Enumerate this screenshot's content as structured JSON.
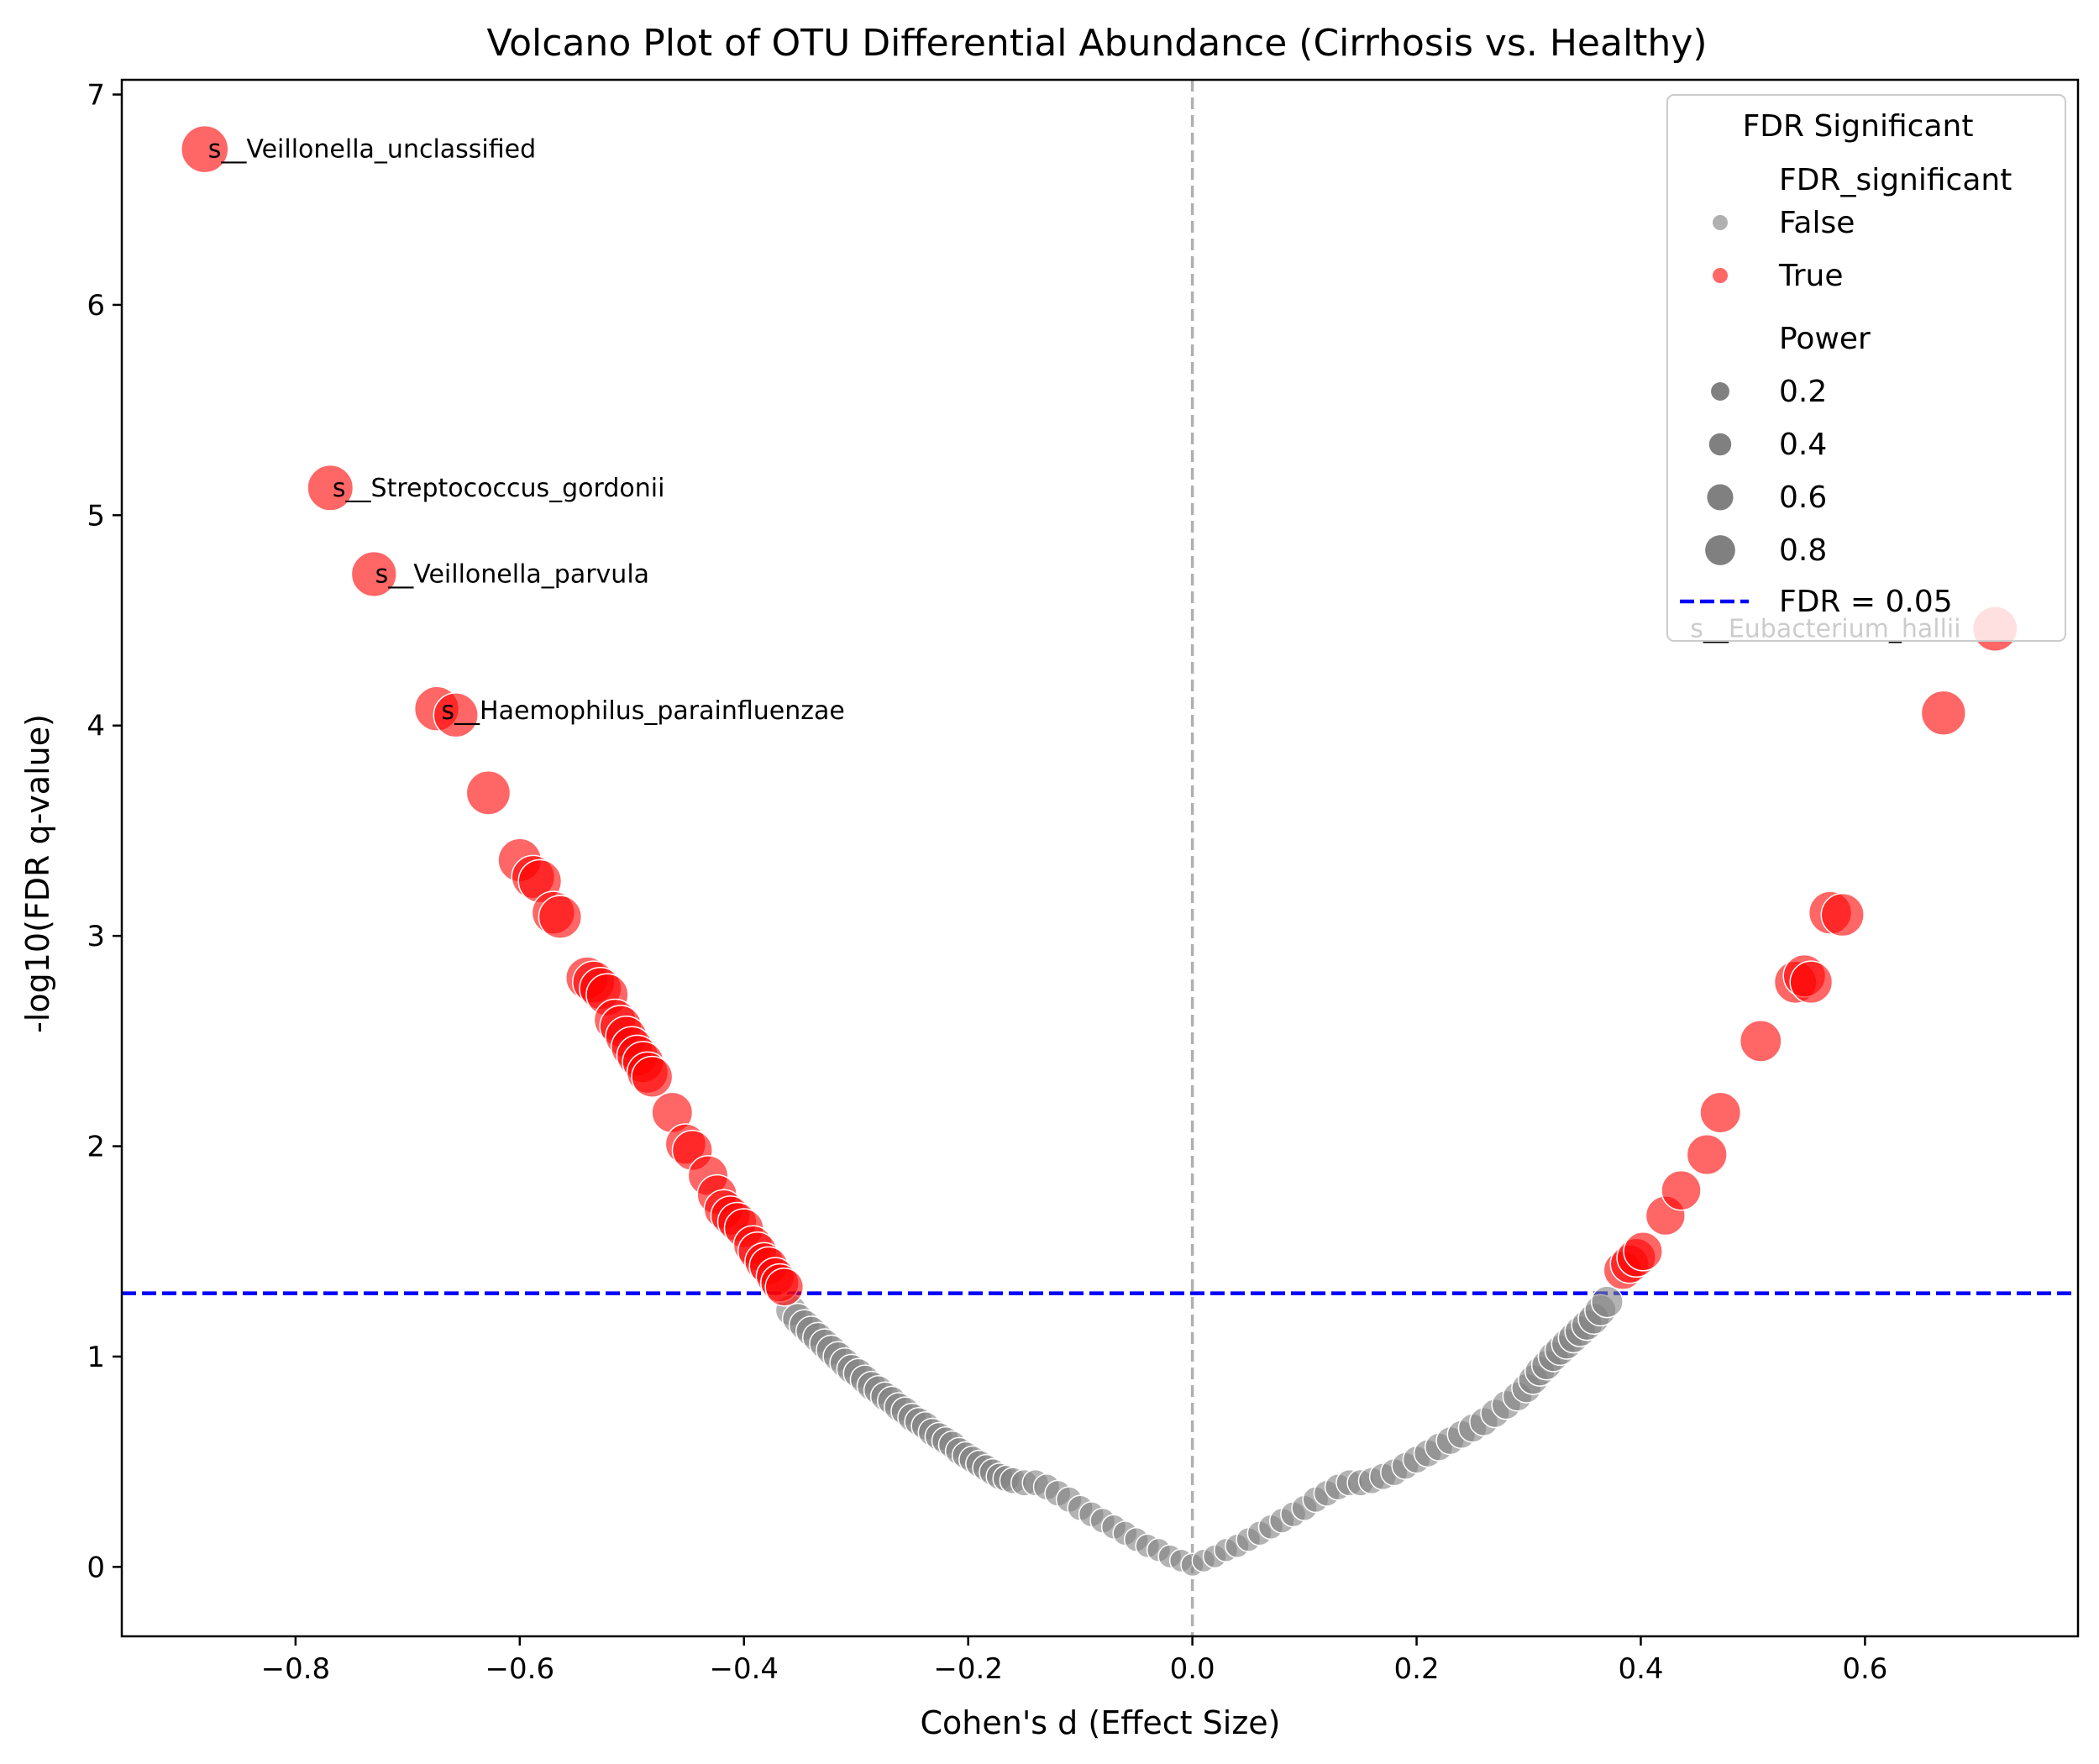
{
  "chart_data": {
    "type": "scatter",
    "title": "Volcano Plot of OTU Differential Abundance (Cirrhosis vs. Healthy)",
    "xlabel": "Cohen's d (Effect Size)",
    "ylabel": "-log10(FDR q-value)",
    "xlim": [
      -0.955,
      0.79
    ],
    "ylim": [
      -0.33,
      7.07
    ],
    "xticks": [
      -0.8,
      -0.6,
      -0.4,
      -0.2,
      0.0,
      0.2,
      0.4,
      0.6
    ],
    "xtick_labels": [
      "−0.8",
      "−0.6",
      "−0.4",
      "−0.2",
      "0.0",
      "0.2",
      "0.4",
      "0.6"
    ],
    "yticks": [
      0,
      1,
      2,
      3,
      4,
      5,
      6,
      7
    ],
    "ytick_labels": [
      "0",
      "1",
      "2",
      "3",
      "4",
      "5",
      "6",
      "7"
    ],
    "threshold": {
      "y": 1.301,
      "label": "FDR = 0.05",
      "color": "#0000ff"
    },
    "zero_line": {
      "x": 0,
      "color": "#b0b0b0"
    },
    "colors": {
      "significant": "#ff0000",
      "not_significant": "#808080"
    },
    "legend": {
      "title": "FDR Significant",
      "hue_title": "FDR_significant",
      "hue_entries": [
        {
          "label": "False",
          "color": "#b0b0b0"
        },
        {
          "label": "True",
          "color": "#ff6666"
        }
      ],
      "size_title": "Power",
      "size_entries": [
        "0.2",
        "0.4",
        "0.6",
        "0.8"
      ],
      "size_values": [
        0.2,
        0.4,
        0.6,
        0.8
      ],
      "line_entry": "FDR = 0.05",
      "placement": "upper right"
    },
    "annotations": [
      {
        "text": "s__Veillonella_unclassified",
        "x": -0.878,
        "y": 6.74
      },
      {
        "text": "s__Streptococcus_gordonii",
        "x": -0.767,
        "y": 5.13
      },
      {
        "text": "s__Veillonella_parvula",
        "x": -0.729,
        "y": 4.72
      },
      {
        "text": "s__Haemophilus_parainfluenzae",
        "x": -0.67,
        "y": 4.07
      },
      {
        "text": "s__Eubacterium_hallii",
        "x": 0.444,
        "y": 4.46
      }
    ],
    "series": [
      {
        "name": "True",
        "points": [
          [
            -0.881,
            6.74,
            1.0
          ],
          [
            -0.769,
            5.13,
            0.95
          ],
          [
            -0.73,
            4.72,
            0.93
          ],
          [
            -0.674,
            4.08,
            0.9
          ],
          [
            -0.657,
            4.05,
            0.9
          ],
          [
            -0.628,
            3.68,
            0.88
          ],
          [
            -0.6,
            3.36,
            0.86
          ],
          [
            -0.588,
            3.28,
            0.85
          ],
          [
            -0.582,
            3.26,
            0.85
          ],
          [
            -0.57,
            3.11,
            0.84
          ],
          [
            -0.564,
            3.09,
            0.84
          ],
          [
            -0.54,
            2.8,
            0.82
          ],
          [
            -0.534,
            2.78,
            0.82
          ],
          [
            -0.528,
            2.75,
            0.81
          ],
          [
            -0.522,
            2.72,
            0.81
          ],
          [
            -0.515,
            2.6,
            0.8
          ],
          [
            -0.51,
            2.57,
            0.8
          ],
          [
            -0.505,
            2.52,
            0.79
          ],
          [
            -0.5,
            2.47,
            0.79
          ],
          [
            -0.495,
            2.43,
            0.78
          ],
          [
            -0.49,
            2.4,
            0.78
          ],
          [
            -0.486,
            2.35,
            0.78
          ],
          [
            -0.482,
            2.33,
            0.77
          ],
          [
            -0.464,
            2.16,
            0.76
          ],
          [
            -0.452,
            2.01,
            0.75
          ],
          [
            -0.446,
            1.98,
            0.74
          ],
          [
            -0.432,
            1.86,
            0.73
          ],
          [
            -0.424,
            1.77,
            0.72
          ],
          [
            -0.418,
            1.7,
            0.71
          ],
          [
            -0.412,
            1.67,
            0.71
          ],
          [
            -0.406,
            1.64,
            0.7
          ],
          [
            -0.4,
            1.61,
            0.7
          ],
          [
            -0.392,
            1.53,
            0.69
          ],
          [
            -0.388,
            1.5,
            0.69
          ],
          [
            -0.382,
            1.45,
            0.68
          ],
          [
            -0.378,
            1.43,
            0.68
          ],
          [
            -0.372,
            1.38,
            0.67
          ],
          [
            -0.368,
            1.35,
            0.67
          ],
          [
            -0.364,
            1.33,
            0.66
          ],
          [
            0.384,
            1.41,
            0.68
          ],
          [
            0.39,
            1.44,
            0.68
          ],
          [
            0.396,
            1.47,
            0.69
          ],
          [
            0.402,
            1.5,
            0.69
          ],
          [
            0.422,
            1.67,
            0.71
          ],
          [
            0.436,
            1.79,
            0.72
          ],
          [
            0.459,
            1.96,
            0.74
          ],
          [
            0.471,
            2.16,
            0.76
          ],
          [
            0.507,
            2.5,
            0.79
          ],
          [
            0.538,
            2.78,
            0.82
          ],
          [
            0.546,
            2.81,
            0.82
          ],
          [
            0.552,
            2.78,
            0.82
          ],
          [
            0.569,
            3.11,
            0.84
          ],
          [
            0.58,
            3.1,
            0.84
          ],
          [
            0.67,
            4.06,
            0.9
          ],
          [
            0.716,
            4.46,
            0.92
          ]
        ]
      },
      {
        "name": "False",
        "points": [
          [
            -0.358,
            1.22,
            0.4
          ],
          [
            -0.352,
            1.18,
            0.39
          ],
          [
            -0.346,
            1.15,
            0.39
          ],
          [
            -0.34,
            1.12,
            0.38
          ],
          [
            -0.334,
            1.09,
            0.38
          ],
          [
            -0.328,
            1.06,
            0.37
          ],
          [
            -0.322,
            1.03,
            0.37
          ],
          [
            -0.316,
            1.0,
            0.36
          ],
          [
            -0.31,
            0.97,
            0.36
          ],
          [
            -0.304,
            0.94,
            0.35
          ],
          [
            -0.298,
            0.92,
            0.35
          ],
          [
            -0.292,
            0.89,
            0.34
          ],
          [
            -0.286,
            0.86,
            0.34
          ],
          [
            -0.28,
            0.84,
            0.33
          ],
          [
            -0.274,
            0.81,
            0.33
          ],
          [
            -0.268,
            0.79,
            0.32
          ],
          [
            -0.262,
            0.76,
            0.32
          ],
          [
            -0.256,
            0.74,
            0.31
          ],
          [
            -0.25,
            0.71,
            0.31
          ],
          [
            -0.244,
            0.69,
            0.3
          ],
          [
            -0.238,
            0.67,
            0.3
          ],
          [
            -0.232,
            0.64,
            0.29
          ],
          [
            -0.226,
            0.62,
            0.29
          ],
          [
            -0.22,
            0.6,
            0.28
          ],
          [
            -0.214,
            0.58,
            0.28
          ],
          [
            -0.208,
            0.55,
            0.27
          ],
          [
            -0.202,
            0.53,
            0.27
          ],
          [
            -0.196,
            0.51,
            0.26
          ],
          [
            -0.19,
            0.49,
            0.26
          ],
          [
            -0.184,
            0.47,
            0.25
          ],
          [
            -0.178,
            0.45,
            0.25
          ],
          [
            -0.172,
            0.43,
            0.24
          ],
          [
            -0.166,
            0.42,
            0.24
          ],
          [
            -0.16,
            0.41,
            0.23
          ],
          [
            -0.15,
            0.4,
            0.23
          ],
          [
            -0.14,
            0.4,
            0.22
          ],
          [
            -0.13,
            0.38,
            0.22
          ],
          [
            -0.12,
            0.35,
            0.21
          ],
          [
            -0.11,
            0.32,
            0.2
          ],
          [
            -0.1,
            0.28,
            0.19
          ],
          [
            -0.09,
            0.25,
            0.18
          ],
          [
            -0.08,
            0.22,
            0.17
          ],
          [
            -0.07,
            0.19,
            0.16
          ],
          [
            -0.06,
            0.16,
            0.15
          ],
          [
            -0.05,
            0.13,
            0.14
          ],
          [
            -0.04,
            0.1,
            0.13
          ],
          [
            -0.03,
            0.08,
            0.12
          ],
          [
            -0.02,
            0.05,
            0.11
          ],
          [
            -0.01,
            0.03,
            0.1
          ],
          [
            0.0,
            0.01,
            0.1
          ],
          [
            0.01,
            0.03,
            0.1
          ],
          [
            0.02,
            0.05,
            0.11
          ],
          [
            0.03,
            0.08,
            0.12
          ],
          [
            0.04,
            0.1,
            0.13
          ],
          [
            0.05,
            0.13,
            0.14
          ],
          [
            0.06,
            0.16,
            0.15
          ],
          [
            0.07,
            0.19,
            0.16
          ],
          [
            0.08,
            0.22,
            0.17
          ],
          [
            0.09,
            0.25,
            0.18
          ],
          [
            0.1,
            0.28,
            0.19
          ],
          [
            0.11,
            0.32,
            0.2
          ],
          [
            0.12,
            0.35,
            0.21
          ],
          [
            0.13,
            0.38,
            0.22
          ],
          [
            0.14,
            0.4,
            0.22
          ],
          [
            0.15,
            0.4,
            0.23
          ],
          [
            0.16,
            0.41,
            0.23
          ],
          [
            0.17,
            0.43,
            0.24
          ],
          [
            0.18,
            0.45,
            0.25
          ],
          [
            0.19,
            0.48,
            0.25
          ],
          [
            0.2,
            0.51,
            0.26
          ],
          [
            0.21,
            0.54,
            0.27
          ],
          [
            0.22,
            0.57,
            0.28
          ],
          [
            0.23,
            0.6,
            0.28
          ],
          [
            0.24,
            0.63,
            0.29
          ],
          [
            0.25,
            0.66,
            0.3
          ],
          [
            0.26,
            0.69,
            0.3
          ],
          [
            0.27,
            0.73,
            0.31
          ],
          [
            0.28,
            0.77,
            0.32
          ],
          [
            0.29,
            0.81,
            0.33
          ],
          [
            0.298,
            0.85,
            0.34
          ],
          [
            0.304,
            0.89,
            0.35
          ],
          [
            0.31,
            0.93,
            0.35
          ],
          [
            0.316,
            0.96,
            0.36
          ],
          [
            0.322,
            1.0,
            0.37
          ],
          [
            0.328,
            1.03,
            0.37
          ],
          [
            0.334,
            1.06,
            0.38
          ],
          [
            0.34,
            1.09,
            0.38
          ],
          [
            0.346,
            1.12,
            0.39
          ],
          [
            0.352,
            1.15,
            0.39
          ],
          [
            0.358,
            1.18,
            0.4
          ],
          [
            0.364,
            1.22,
            0.41
          ],
          [
            0.37,
            1.26,
            0.42
          ]
        ]
      }
    ]
  }
}
